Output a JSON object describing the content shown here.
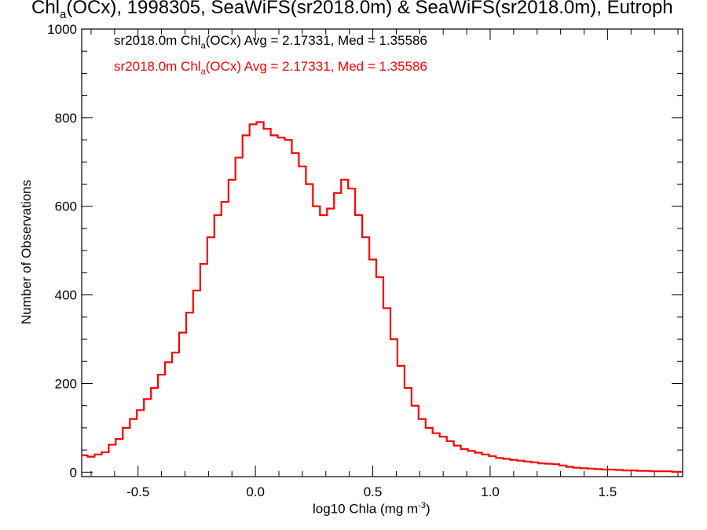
{
  "title": {
    "prefix": "Chl",
    "sub": "a",
    "rest": "(OCx), 1998305, SeaWiFS(sr2018.0m) & SeaWiFS(sr2018.0m), Eutroph"
  },
  "legend": [
    {
      "prefix": "sr2018.0m Chl",
      "sub": "a",
      "rest": "(OCx) Avg = 2.17331, Med = 1.35586",
      "color": "#000000"
    },
    {
      "prefix": "sr2018.0m Chl",
      "sub": "a",
      "rest": "(OCx) Avg = 2.17331, Med = 1.35586",
      "color": "#ff0000"
    }
  ],
  "axes": {
    "xlabel": {
      "prefix": "log10 Chla (mg m",
      "sup": "-3",
      "suffix": ")"
    },
    "ylabel": "Number of Observations",
    "xtick_labels": [
      "-0.5",
      "0.0",
      "0.5",
      "1.0",
      "1.5"
    ],
    "ytick_labels": [
      "0",
      "200",
      "400",
      "600",
      "800",
      "1000"
    ]
  },
  "chart_data": {
    "type": "line",
    "style": "step histogram",
    "xlabel": "log10 Chla (mg m-3)",
    "ylabel": "Number of Observations",
    "xlim": [
      -0.74,
      1.82
    ],
    "ylim": [
      -10,
      1000
    ],
    "xticks": [
      -0.5,
      0.0,
      0.5,
      1.0,
      1.5
    ],
    "yticks": [
      0,
      200,
      400,
      600,
      800,
      1000
    ],
    "grid": false,
    "legend_position": "top-left, text only",
    "series": [
      {
        "name": "sr2018.0m Chla(OCx) Avg = 2.17331, Med = 1.35586",
        "color": "#ff0000",
        "x": [
          -0.73,
          -0.7,
          -0.67,
          -0.64,
          -0.61,
          -0.58,
          -0.55,
          -0.52,
          -0.49,
          -0.46,
          -0.43,
          -0.4,
          -0.37,
          -0.34,
          -0.31,
          -0.28,
          -0.25,
          -0.22,
          -0.19,
          -0.16,
          -0.13,
          -0.1,
          -0.07,
          -0.04,
          -0.01,
          0.02,
          0.05,
          0.08,
          0.11,
          0.14,
          0.17,
          0.2,
          0.23,
          0.26,
          0.29,
          0.32,
          0.35,
          0.38,
          0.41,
          0.44,
          0.47,
          0.5,
          0.53,
          0.56,
          0.59,
          0.62,
          0.65,
          0.68,
          0.71,
          0.74,
          0.77,
          0.8,
          0.83,
          0.86,
          0.89,
          0.92,
          0.95,
          0.98,
          1.01,
          1.04,
          1.07,
          1.1,
          1.13,
          1.16,
          1.19,
          1.22,
          1.25,
          1.28,
          1.31,
          1.34,
          1.37,
          1.4,
          1.43,
          1.46,
          1.49,
          1.52,
          1.55,
          1.58,
          1.61,
          1.64,
          1.67,
          1.7,
          1.73,
          1.76,
          1.79,
          1.81
        ],
        "y": [
          38,
          35,
          40,
          45,
          62,
          75,
          100,
          120,
          140,
          165,
          190,
          220,
          248,
          270,
          315,
          360,
          410,
          470,
          530,
          580,
          610,
          660,
          710,
          760,
          785,
          790,
          775,
          760,
          755,
          750,
          720,
          690,
          650,
          600,
          580,
          595,
          630,
          660,
          640,
          580,
          530,
          480,
          440,
          370,
          300,
          240,
          190,
          150,
          120,
          100,
          88,
          80,
          70,
          60,
          52,
          48,
          44,
          40,
          36,
          32,
          30,
          28,
          26,
          24,
          22,
          20,
          19,
          18,
          15,
          12,
          10,
          9,
          8,
          7,
          6,
          6,
          5,
          4,
          4,
          3,
          3,
          2,
          2,
          2,
          1,
          1
        ]
      }
    ]
  }
}
